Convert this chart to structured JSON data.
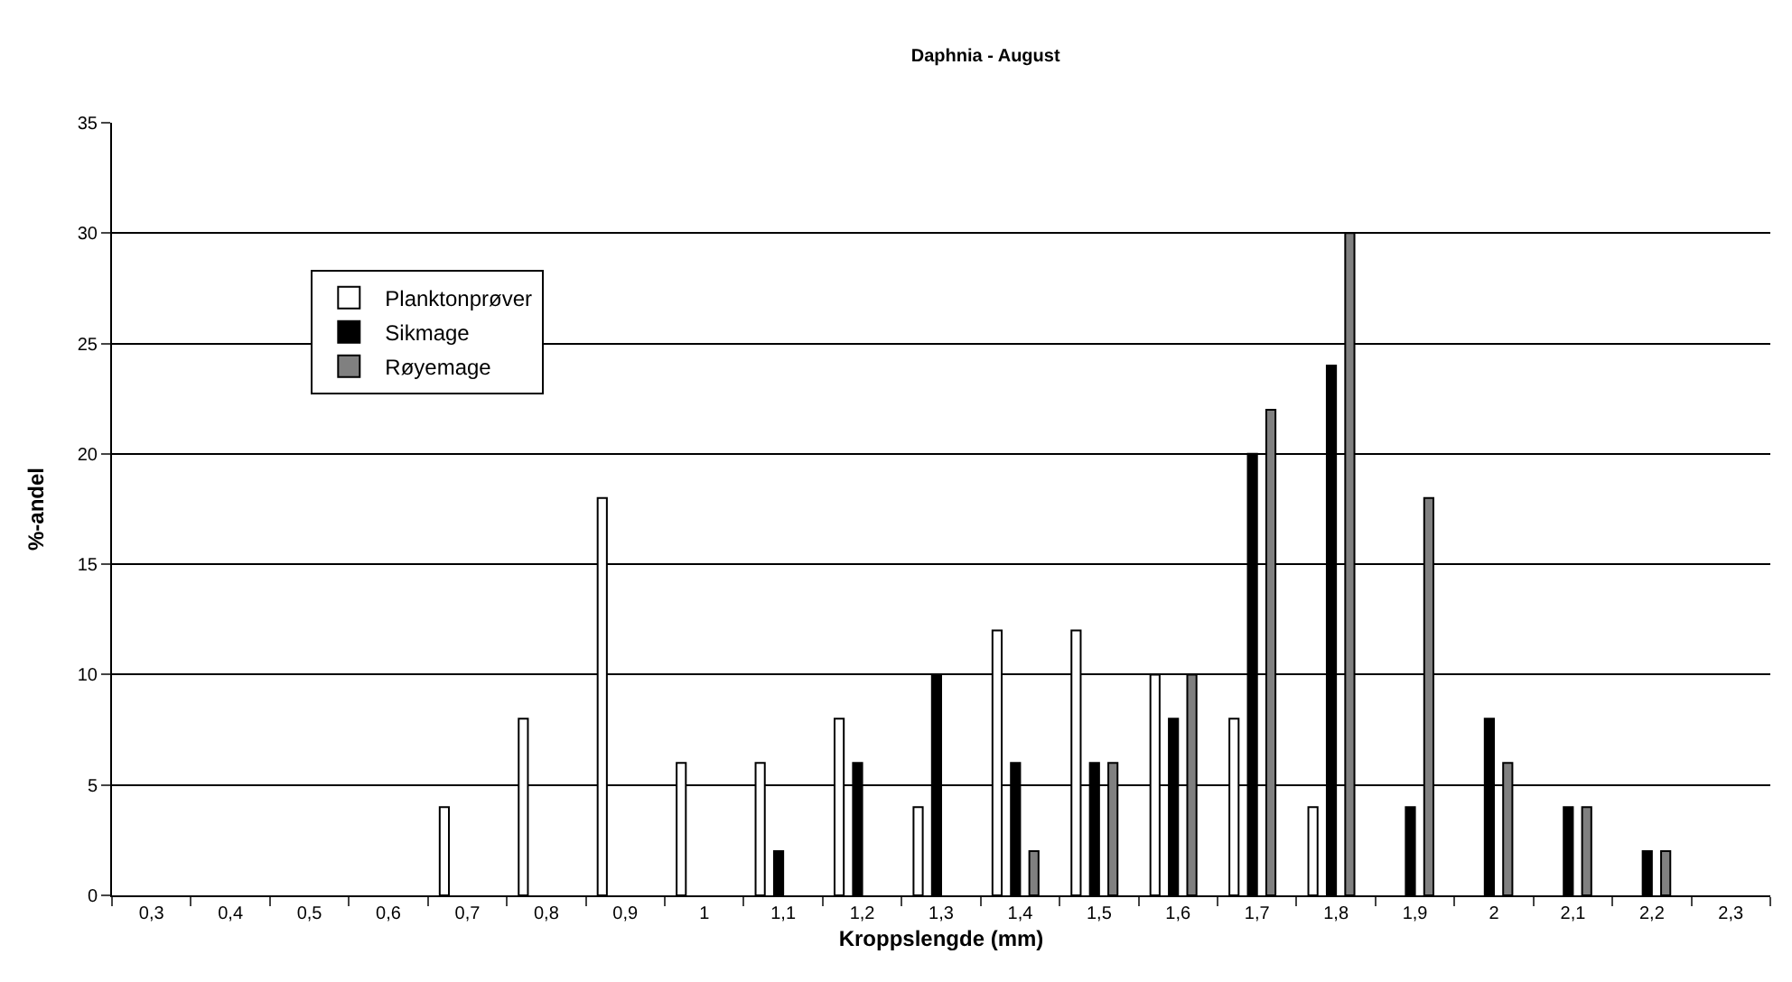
{
  "chart_data": {
    "type": "bar",
    "title": "Daphnia - August",
    "xlabel": "Kroppslengde (mm)",
    "ylabel": "%-andel",
    "categories": [
      "0,3",
      "0,4",
      "0,5",
      "0,6",
      "0,7",
      "0,8",
      "0,9",
      "1",
      "1,1",
      "1,2",
      "1,3",
      "1,4",
      "1,5",
      "1,6",
      "1,7",
      "1,8",
      "1,9",
      "2",
      "2,1",
      "2,2",
      "2,3"
    ],
    "series": [
      {
        "name": "Planktonprøver",
        "color": "#ffffff",
        "values": [
          0,
          0,
          0,
          0,
          4,
          8,
          18,
          6,
          6,
          8,
          4,
          12,
          12,
          10,
          8,
          4,
          0,
          0,
          0,
          0,
          0
        ]
      },
      {
        "name": "Sikmage",
        "color": "#000000",
        "values": [
          0,
          0,
          0,
          0,
          0,
          0,
          0,
          0,
          2,
          6,
          10,
          6,
          6,
          8,
          20,
          24,
          4,
          8,
          4,
          2,
          0
        ]
      },
      {
        "name": "Røyemage",
        "color": "#808080",
        "values": [
          0,
          0,
          0,
          0,
          0,
          0,
          0,
          0,
          0,
          0,
          0,
          2,
          6,
          10,
          22,
          30,
          18,
          6,
          4,
          2,
          0
        ]
      }
    ],
    "ylim": [
      0,
      35
    ],
    "yticks": [
      0,
      5,
      10,
      15,
      20,
      25,
      30,
      35
    ],
    "grid": "y",
    "legend": "top left"
  }
}
